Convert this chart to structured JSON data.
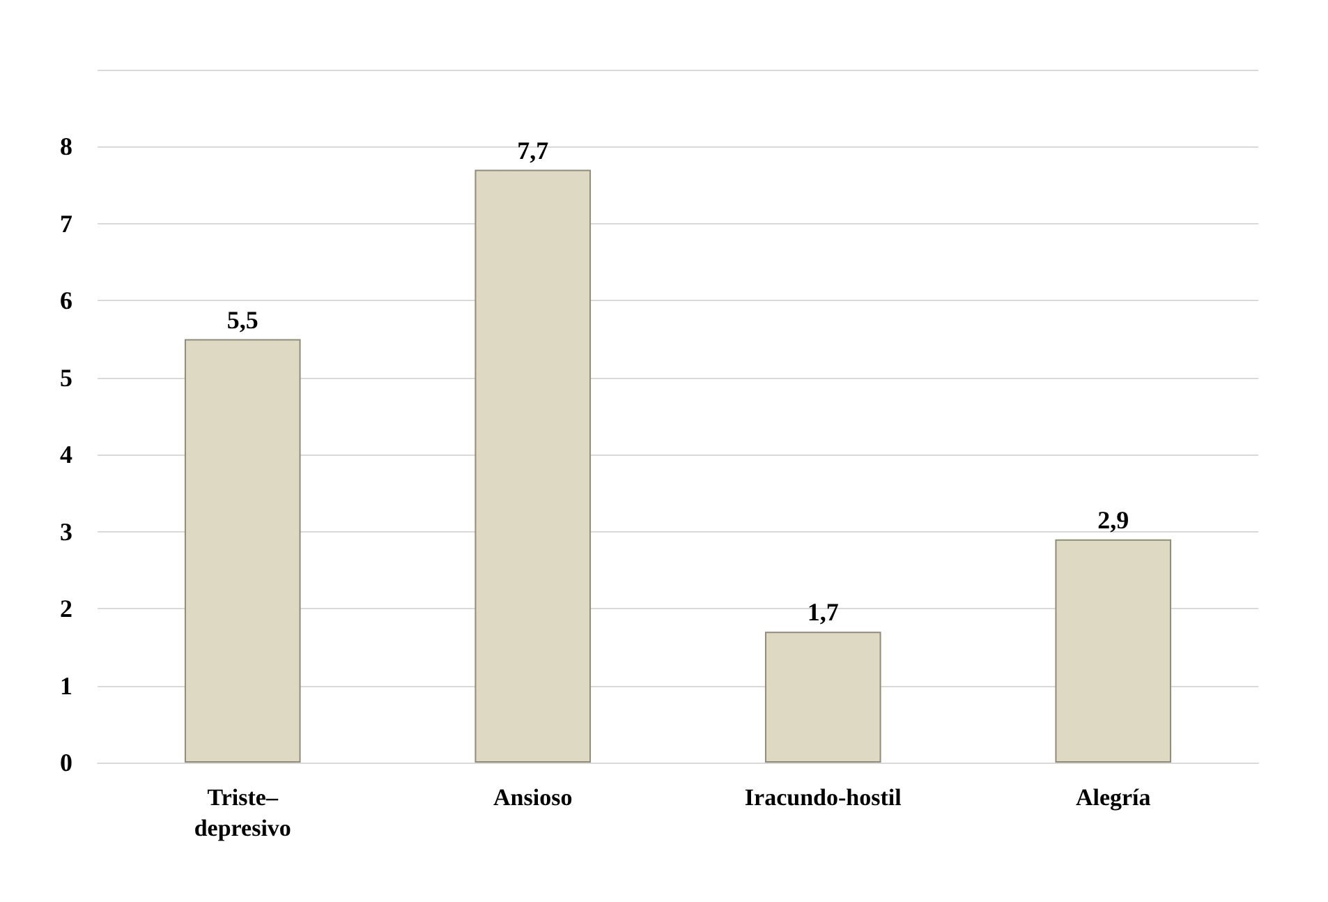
{
  "chart_data": {
    "type": "bar",
    "categories": [
      "Triste–\ndepresivo",
      "Ansioso",
      "Iracundo-hostil",
      "Alegría"
    ],
    "values": [
      5.5,
      7.7,
      1.7,
      2.9
    ],
    "value_labels": [
      "5,5",
      "7,7",
      "1,7",
      "2,9"
    ],
    "color": "#ddd9c3",
    "ylim": [
      0,
      9
    ],
    "yticks": [
      0,
      1,
      2,
      3,
      4,
      5,
      6,
      7,
      8,
      {
        "value": 9,
        "label": null
      }
    ],
    "grid": "y"
  }
}
